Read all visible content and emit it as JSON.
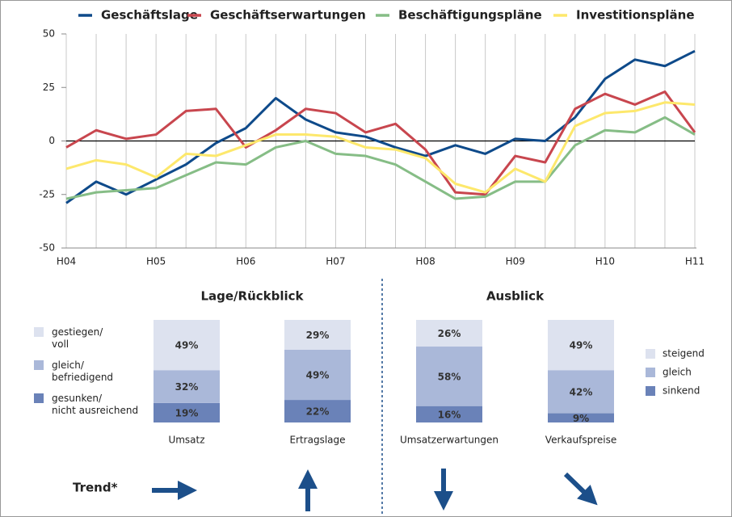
{
  "chart_data": [
    {
      "type": "line",
      "categories": [
        "H04",
        null,
        null,
        "H05",
        null,
        null,
        "H06",
        null,
        null,
        "H07",
        null,
        null,
        "H08",
        null,
        null,
        "H09",
        null,
        null,
        "H10",
        null,
        null,
        "H11"
      ],
      "series": [
        {
          "name": "Geschäftslage",
          "color": "#0e4a8a",
          "values": [
            -29,
            -19,
            -25,
            -18,
            -11,
            -1,
            6,
            20,
            10,
            4,
            2,
            -3,
            -7,
            -2,
            -6,
            1,
            0,
            11,
            29,
            38,
            35,
            42
          ]
        },
        {
          "name": "Geschäftserwartungen",
          "color": "#c8464e",
          "values": [
            -3,
            5,
            1,
            3,
            14,
            15,
            -3,
            5,
            15,
            13,
            4,
            8,
            -4,
            -24,
            -25,
            -7,
            -10,
            15,
            22,
            17,
            23,
            4
          ]
        },
        {
          "name": "Beschäftigungspläne",
          "color": "#86bd86",
          "values": [
            -27,
            -24,
            -23,
            -22,
            -16,
            -10,
            -11,
            -3,
            0,
            -6,
            -7,
            -11,
            -19,
            -27,
            -26,
            -19,
            -19,
            -2,
            5,
            4,
            11,
            3
          ]
        },
        {
          "name": "Investitionspläne",
          "color": "#fde86c",
          "values": [
            -13,
            -9,
            -11,
            -17,
            -6,
            -7,
            -2,
            3,
            3,
            2,
            -3,
            -4,
            -8,
            -20,
            -24,
            -13,
            -19,
            7,
            13,
            14,
            18,
            17
          ]
        }
      ],
      "ylim": [
        -50,
        50
      ],
      "yticks": [
        50,
        25,
        0,
        -25,
        -50
      ],
      "grid": "vertical",
      "legend": "top"
    },
    {
      "type": "stacked_bar",
      "title": "Lage/Rückblick",
      "legend": "left",
      "categories": [
        "Umsatz",
        "Ertragslage"
      ],
      "series": [
        {
          "name": "gesunken/\nnicht ausreichend",
          "color": "#6a82b8",
          "values": [
            19,
            22
          ],
          "value_labels": [
            "19%",
            "22%"
          ]
        },
        {
          "name": "gleich/\nbefriedigend",
          "color": "#aab8d9",
          "values": [
            32,
            49
          ],
          "value_labels": [
            "32%",
            "49%"
          ]
        },
        {
          "name": "gestiegen/\nvoll",
          "color": "#dde2ef",
          "values": [
            49,
            29
          ],
          "value_labels": [
            "49%",
            "29%"
          ]
        }
      ]
    },
    {
      "type": "stacked_bar",
      "title": "Ausblick",
      "legend": "right",
      "categories": [
        "Umsatzerwartungen",
        "Verkaufspreise"
      ],
      "series": [
        {
          "name": "sinkend",
          "color": "#6a82b8",
          "values": [
            16,
            9
          ],
          "value_labels": [
            "16%",
            "9%"
          ]
        },
        {
          "name": "gleich",
          "color": "#aab8d9",
          "values": [
            58,
            42
          ],
          "value_labels": [
            "58%",
            "42%"
          ]
        },
        {
          "name": "steigend",
          "color": "#dde2ef",
          "values": [
            26,
            49
          ],
          "value_labels": [
            "26%",
            "49%"
          ]
        }
      ]
    }
  ],
  "trend": {
    "label": "Trend*"
  }
}
